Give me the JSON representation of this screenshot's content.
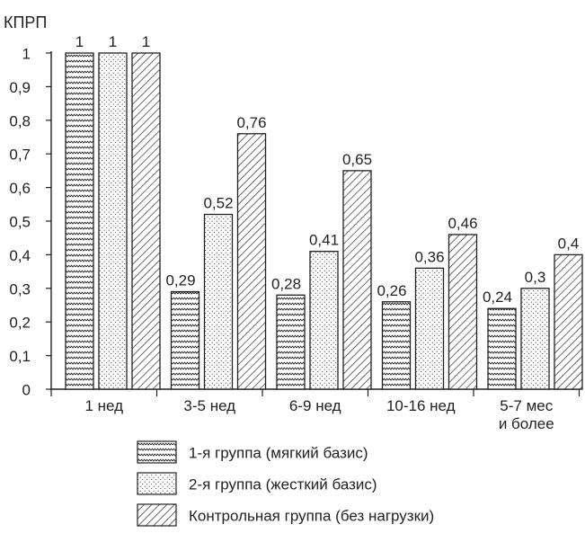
{
  "chart_data": {
    "type": "bar",
    "title": "",
    "ylabel": "КПРП",
    "xlabel": "",
    "ylim": [
      0,
      1
    ],
    "yticks": [
      "0",
      "0,1",
      "0,2",
      "0,3",
      "0,4",
      "0,5",
      "0,6",
      "0,7",
      "0,8",
      "0,9",
      "1"
    ],
    "categories": [
      {
        "lines": [
          "1 нед"
        ]
      },
      {
        "lines": [
          "3-5 нед"
        ]
      },
      {
        "lines": [
          "6-9 нед"
        ]
      },
      {
        "lines": [
          "10-16 нед"
        ]
      },
      {
        "lines": [
          "5-7 мес",
          "и более"
        ]
      }
    ],
    "series": [
      {
        "name": "1-я группа (мягкий базис)",
        "pattern": "wave",
        "values": [
          1,
          0.29,
          0.28,
          0.26,
          0.24
        ],
        "labels": [
          "1",
          "0,29",
          "0,28",
          "0,26",
          "0,24"
        ]
      },
      {
        "name": "2-я группа (жесткий базис)",
        "pattern": "dots",
        "values": [
          1,
          0.52,
          0.41,
          0.36,
          0.3
        ],
        "labels": [
          "1",
          "0,52",
          "0,41",
          "0,36",
          "0,3"
        ]
      },
      {
        "name": "Контрольная группа (без нагрузки)",
        "pattern": "diagonal",
        "values": [
          1,
          0.76,
          0.65,
          0.46,
          0.4
        ],
        "labels": [
          "1",
          "0,76",
          "0,65",
          "0,46",
          "0,4"
        ]
      }
    ],
    "grid": false,
    "legend_position": "bottom",
    "colors": {
      "ink": "#231f20",
      "background": "#ffffff"
    }
  }
}
